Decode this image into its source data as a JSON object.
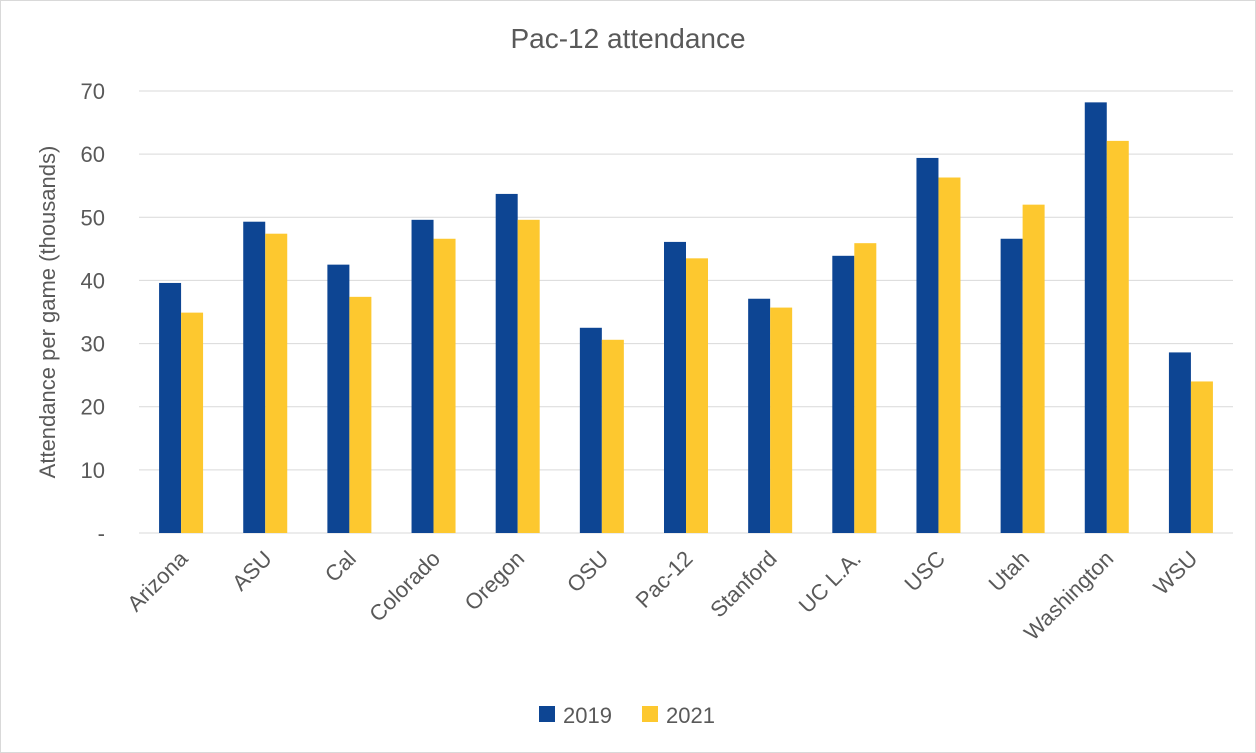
{
  "chart_data": {
    "type": "bar",
    "title": "Pac-12 attendance",
    "ylabel": "Attendance per game (thousands)",
    "xlabel": "",
    "ylim": [
      0,
      70
    ],
    "yticks": [
      "-",
      "10",
      "20",
      "30",
      "40",
      "50",
      "60",
      "70"
    ],
    "grid": true,
    "legend_position": "bottom",
    "categories": [
      "Arizona",
      "ASU",
      "Cal",
      "Colorado",
      "Oregon",
      "OSU",
      "Pac-12",
      "Stanford",
      "UC L.A.",
      "USC",
      "Utah",
      "Washington",
      "WSU"
    ],
    "series": [
      {
        "name": "2019",
        "color": "#0d4593",
        "values": [
          39.6,
          49.3,
          42.5,
          49.6,
          53.7,
          32.5,
          46.1,
          37.1,
          43.9,
          59.4,
          46.6,
          68.2,
          28.6
        ]
      },
      {
        "name": "2021",
        "color": "#fdc82f",
        "values": [
          34.9,
          47.4,
          37.4,
          46.6,
          49.6,
          30.6,
          43.5,
          35.7,
          45.9,
          56.3,
          52.0,
          62.1,
          24.0
        ]
      }
    ]
  }
}
